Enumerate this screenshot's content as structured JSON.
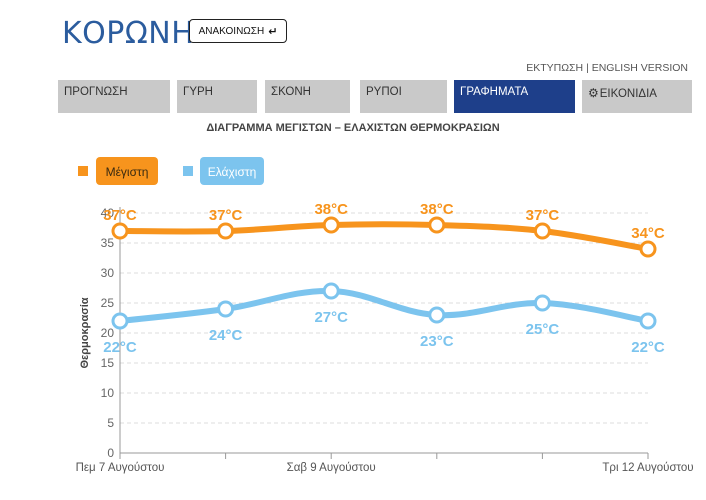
{
  "header": {
    "site_title": "ΚΟΡΩΝΗ",
    "announce_label": "ΑΝΑΚΟΙΝΩΣΗ",
    "announce_icon": "arrow-return-icon",
    "print_link": "ΕΚΤΥΠΩΣΗ",
    "link_separator": "|",
    "english_link": "ENGLISH VERSION"
  },
  "tabs": [
    {
      "label": "ΠΡΟΓΝΩΣΗ",
      "active": false
    },
    {
      "label": "ΓΥΡΗ",
      "active": false
    },
    {
      "label": "ΣΚΟΝΗ",
      "active": false
    },
    {
      "label": "ΡΥΠΟΙ",
      "active": false
    },
    {
      "label": "ΓΡΑΦΗΜΑΤΑ",
      "active": true
    },
    {
      "label": "ΕΙΚΟΝΙΔΙΑ",
      "active": false,
      "icon": "gear-icon"
    }
  ],
  "colors": {
    "tab_active": "#1e3f8a",
    "tab_inactive": "#c9c9c9",
    "max_series": "#f7941d",
    "min_series": "#7cc4ee",
    "max_label_bg": "#f7941d",
    "min_label_bg": "#7cc4ee"
  },
  "chart_data": {
    "type": "line",
    "title": "ΔΙΑΓΡΑΜΜΑ ΜΕΓΙΣΤΩΝ – ΕΛΑΧΙΣΤΩΝ ΘΕΡΜΟΚΡΑΣΙΩΝ",
    "ylabel": "Θερμοκρασία",
    "xlabel": "",
    "ylim": [
      0,
      40
    ],
    "yticks": [
      0,
      5,
      10,
      15,
      20,
      25,
      30,
      35,
      40
    ],
    "grid": true,
    "legend_position": "top-left",
    "x_tick_labels": [
      "Πεμ 7 Αυγούστου",
      "Σαβ 9 Αυγούστου",
      "Τρι 12 Αυγούστου"
    ],
    "x_tick_label_indices": [
      0,
      2,
      5
    ],
    "unit": "°C",
    "series": [
      {
        "name": "Μέγιστη",
        "values": [
          37,
          37,
          38,
          38,
          37,
          34
        ],
        "labels": [
          "37°C",
          "37°C",
          "38°C",
          "38°C",
          "37°C",
          "34°C"
        ]
      },
      {
        "name": "Ελάχιστη",
        "values": [
          22,
          24,
          27,
          23,
          25,
          22
        ],
        "labels": [
          "22°C",
          "24°C",
          "27°C",
          "23°C",
          "25°C",
          "22°C"
        ]
      }
    ]
  }
}
